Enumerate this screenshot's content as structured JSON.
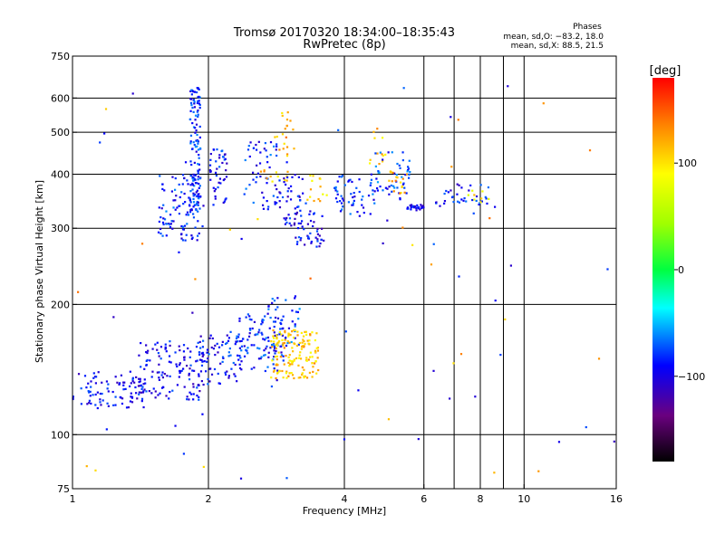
{
  "chart_data": {
    "type": "scatter",
    "title": "Tromsø 20170320 18:34:00–18:35:43",
    "subtitle": "RwPretec (8p)",
    "xlabel": "Frequency [MHz]",
    "ylabel": "Stationary phase Virtual Height [km]",
    "x_scale": "log",
    "y_scale": "log",
    "xlim": [
      1,
      16
    ],
    "ylim": [
      75,
      750
    ],
    "x_ticks": [
      1,
      2,
      4,
      6,
      8,
      10,
      16
    ],
    "x_tick_labels": [
      "1",
      "2",
      "4",
      "6",
      "8",
      "10",
      "16"
    ],
    "x_grid": [
      2,
      4,
      6,
      7,
      8,
      9,
      10
    ],
    "y_ticks": [
      75,
      100,
      200,
      300,
      400,
      500,
      600,
      750
    ],
    "y_tick_labels": [
      "75",
      "100",
      "200",
      "300",
      "400",
      "500",
      "600",
      "750"
    ],
    "y_grid": [
      100,
      200,
      300,
      400,
      500,
      600
    ],
    "grid": true,
    "stats": {
      "title": "Phases",
      "line1": "mean, sd,O: −83.2, 18.0",
      "line2": "mean, sd,X: 88.5, 21.5"
    },
    "colorbar": {
      "label": "[deg]",
      "range": [
        -180,
        180
      ],
      "ticks": [
        100,
        0,
        -100
      ],
      "tick_labels": [
        "100",
        "0",
        "−100"
      ]
    },
    "clusters": [
      {
        "x": [
          1.0,
          1.45
        ],
        "y": [
          115,
          140
        ],
        "phase": -95,
        "n": 90
      },
      {
        "x": [
          1.4,
          1.95
        ],
        "y": [
          120,
          165
        ],
        "phase": -95,
        "n": 130
      },
      {
        "x": [
          1.9,
          2.35
        ],
        "y": [
          130,
          175
        ],
        "phase": -90,
        "n": 70
      },
      {
        "x": [
          2.3,
          2.95
        ],
        "y": [
          140,
          190
        ],
        "phase": -85,
        "n": 110
      },
      {
        "x": [
          2.7,
          3.2
        ],
        "y": [
          160,
          210
        ],
        "phase": -80,
        "n": 40
      },
      {
        "x": [
          2.75,
          3.5
        ],
        "y": [
          135,
          175
        ],
        "phase": 110,
        "n": 150
      },
      {
        "x": [
          1.55,
          1.95
        ],
        "y": [
          280,
          400
        ],
        "phase": -85,
        "n": 110
      },
      {
        "x": [
          1.82,
          1.92
        ],
        "y": [
          330,
          640
        ],
        "phase": -85,
        "n": 120
      },
      {
        "x": [
          2.0,
          2.2
        ],
        "y": [
          330,
          460
        ],
        "phase": -90,
        "n": 45
      },
      {
        "x": [
          2.4,
          2.85
        ],
        "y": [
          330,
          480
        ],
        "phase": -85,
        "n": 50
      },
      {
        "x": [
          2.55,
          3.0
        ],
        "y": [
          380,
          410
        ],
        "phase": 110,
        "n": 12
      },
      {
        "x": [
          2.8,
          3.1
        ],
        "y": [
          440,
          560
        ],
        "phase": 120,
        "n": 20
      },
      {
        "x": [
          2.8,
          3.3
        ],
        "y": [
          300,
          400
        ],
        "phase": -95,
        "n": 50
      },
      {
        "x": [
          3.1,
          3.6
        ],
        "y": [
          270,
          330
        ],
        "phase": -95,
        "n": 45
      },
      {
        "x": [
          3.3,
          3.7
        ],
        "y": [
          340,
          400
        ],
        "phase": 105,
        "n": 14
      },
      {
        "x": [
          3.8,
          4.7
        ],
        "y": [
          320,
          400
        ],
        "phase": -85,
        "n": 55
      },
      {
        "x": [
          4.5,
          5.0
        ],
        "y": [
          420,
          520
        ],
        "phase": 110,
        "n": 12
      },
      {
        "x": [
          4.6,
          5.6
        ],
        "y": [
          350,
          450
        ],
        "phase": -80,
        "n": 50
      },
      {
        "x": [
          5.0,
          5.5
        ],
        "y": [
          360,
          410
        ],
        "phase": 115,
        "n": 18
      },
      {
        "x": [
          5.5,
          6.0
        ],
        "y": [
          330,
          340
        ],
        "phase": -95,
        "n": 25
      },
      {
        "x": [
          6.3,
          8.4
        ],
        "y": [
          340,
          380
        ],
        "phase": -90,
        "n": 35
      },
      {
        "x": [
          7.4,
          8.4
        ],
        "y": [
          340,
          370
        ],
        "phase": 95,
        "n": 8
      },
      {
        "x": [
          1.0,
          16.0
        ],
        "y": [
          78,
          650
        ],
        "phase": -90,
        "n": 45
      },
      {
        "x": [
          1.0,
          16.0
        ],
        "y": [
          78,
          650
        ],
        "phase": 120,
        "n": 25
      }
    ]
  }
}
